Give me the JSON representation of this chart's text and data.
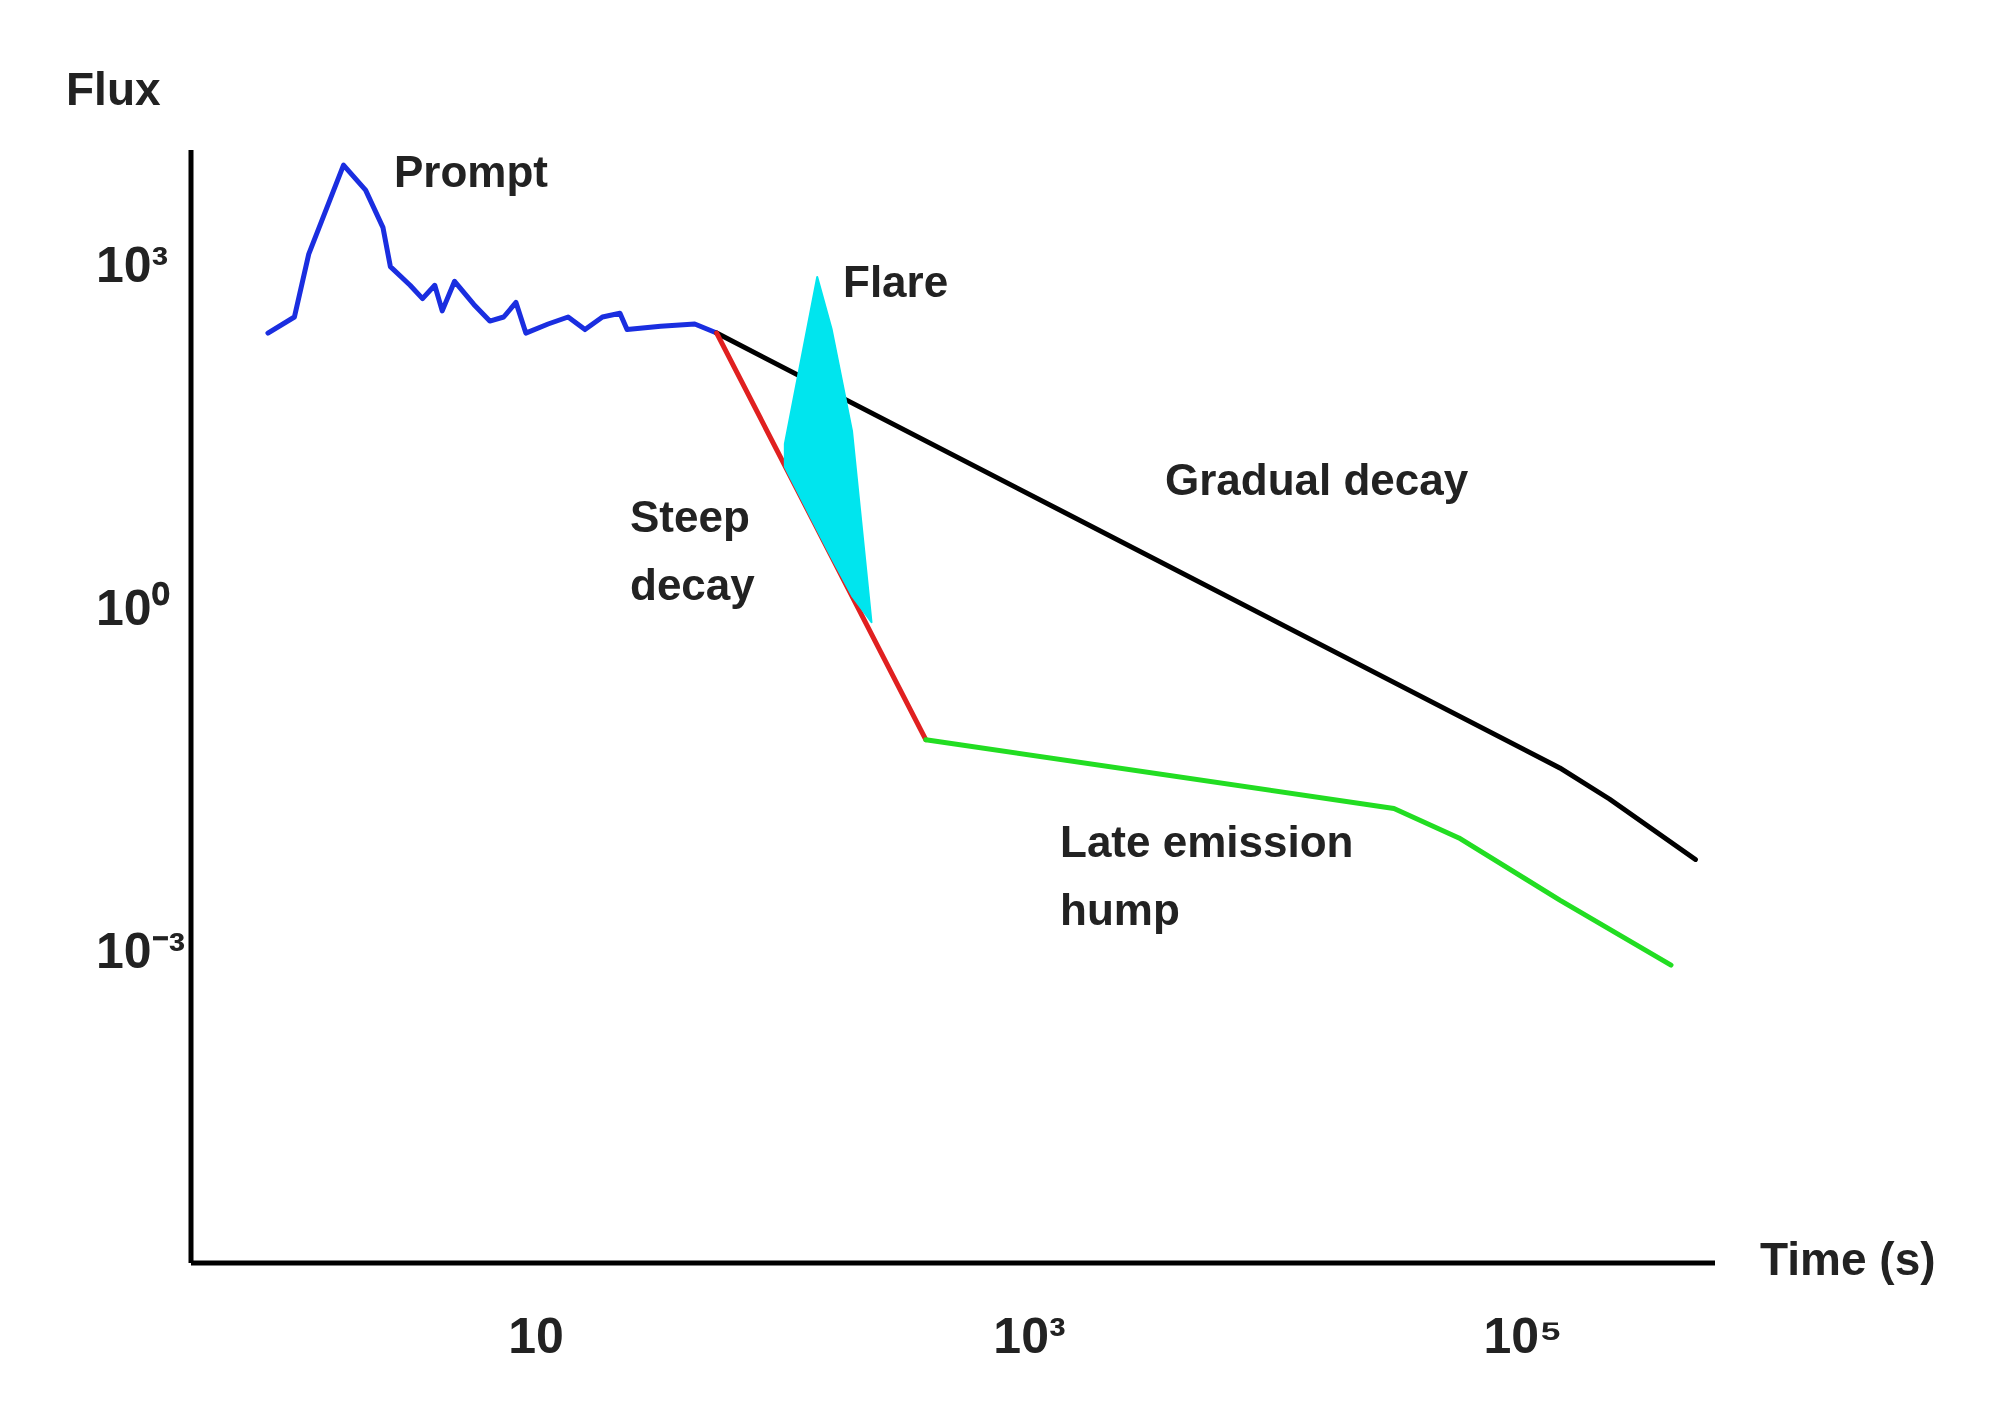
{
  "chart_data": {
    "type": "line",
    "xlabel": "Time (s)",
    "ylabel": "Flux",
    "log": "xy",
    "xlim": [
      0.4,
      600000
    ],
    "ylim": [
      2e-06,
      11000
    ],
    "xticks": [
      10,
      {
        "value": 1000,
        "label": "10³"
      },
      {
        "value": 100000,
        "label": "10⁵"
      }
    ],
    "yticks": [
      {
        "value": 1000,
        "label": "10³"
      },
      {
        "value": 1,
        "label": "10⁰"
      },
      {
        "value": 0.001,
        "label": "10⁻³"
      }
    ],
    "series": [
      {
        "color": "#1a2ee0",
        "x": [
          0.82,
          1.05,
          1.2,
          1.66,
          2.04,
          2.4,
          2.57,
          3.09,
          3.47,
          3.89,
          4.17,
          4.68,
          5.6,
          6.5,
          7.4,
          8.3,
          9.1,
          11.2,
          13.5,
          15.8,
          18.6,
          21.9,
          23.4,
          32,
          44,
          54
        ],
        "values": [
          275,
          380,
          1350,
          8100,
          4900,
          2300,
          1050,
          720,
          550,
          720,
          430,
          780,
          490,
          350,
          380,
          510,
          275,
          330,
          380,
          295,
          380,
          410,
          295,
          316,
          330,
          275
        ]
      },
      {
        "color": "#000000",
        "x": [
          54,
          141000,
          224000,
          500000
        ],
        "values": [
          275,
          0.043,
          0.023,
          0.0068
        ]
      },
      {
        "color": "#e02020",
        "x": [
          54,
          380
        ],
        "values": [
          275,
          0.076
        ]
      },
      {
        "color": "#22dd22",
        "x": [
          380,
          30000,
          55000,
          141000,
          398000
        ],
        "values": [
          0.076,
          0.019,
          0.0105,
          0.003,
          0.00081
        ]
      },
      {
        "type": "area",
        "color": "#00e5ee",
        "x": [
          102,
          138,
          158,
          191,
          229,
          191,
          158,
          138,
          102
        ],
        "values": [
          29.5,
          850,
          295,
          38,
          0.81,
          1.38,
          2.95,
          5.2,
          18.6
        ]
      }
    ],
    "annotations": [
      "Prompt",
      "Flare",
      "Gradual decay",
      "Steep\ndecay",
      "Late emission\nhump"
    ]
  }
}
